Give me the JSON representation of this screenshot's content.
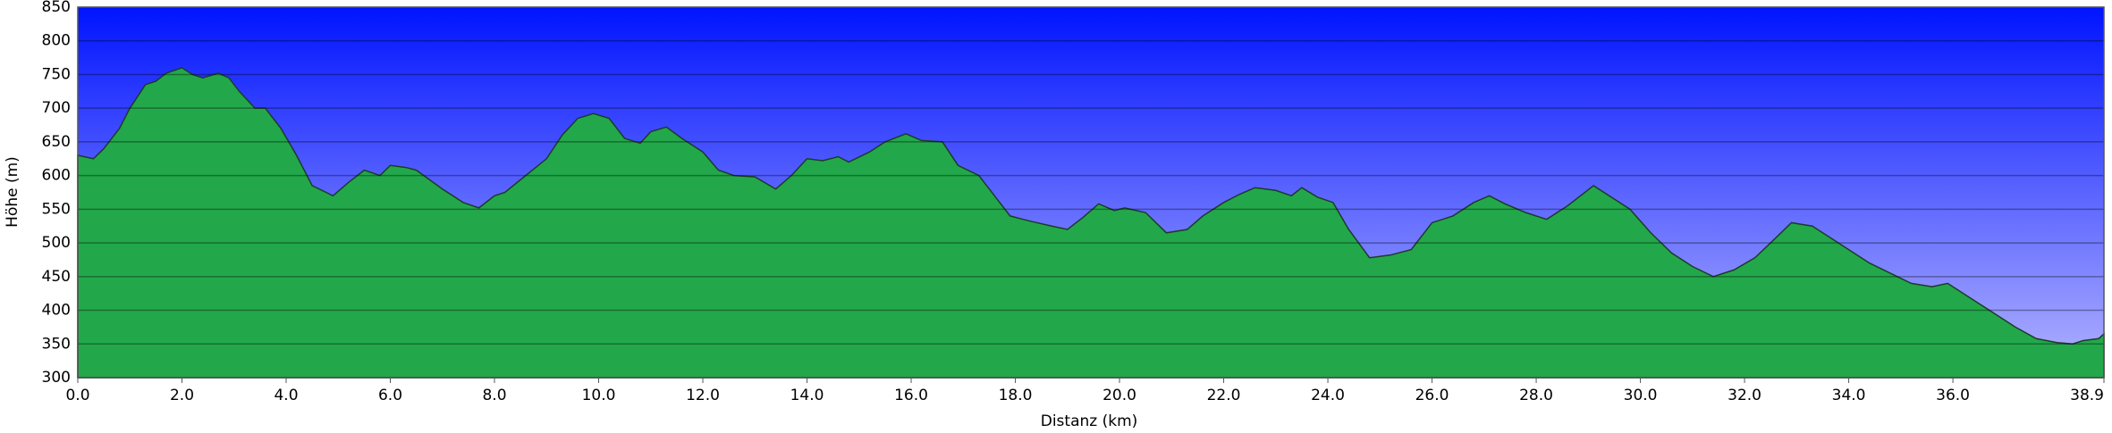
{
  "chart_data": {
    "type": "area",
    "x_label": "Distanz (km)",
    "y_label": "Höhe (m)",
    "color": "#22a84a",
    "line_color": "#1f3a2a",
    "grid": true,
    "xlim": [
      0,
      38.9
    ],
    "ylim": [
      300,
      850
    ],
    "xticks": [
      {
        "value": 0,
        "label": "0.0"
      },
      {
        "value": 2,
        "label": "2.0"
      },
      {
        "value": 4,
        "label": "4.0"
      },
      {
        "value": 6,
        "label": "6.0"
      },
      {
        "value": 8,
        "label": "8.0"
      },
      {
        "value": 10,
        "label": "10.0"
      },
      {
        "value": 12,
        "label": "12.0"
      },
      {
        "value": 14,
        "label": "14.0"
      },
      {
        "value": 16,
        "label": "16.0"
      },
      {
        "value": 18,
        "label": "18.0"
      },
      {
        "value": 20,
        "label": "20.0"
      },
      {
        "value": 22,
        "label": "22.0"
      },
      {
        "value": 24,
        "label": "24.0"
      },
      {
        "value": 26,
        "label": "26.0"
      },
      {
        "value": 28,
        "label": "28.0"
      },
      {
        "value": 30,
        "label": "30.0"
      },
      {
        "value": 32,
        "label": "32.0"
      },
      {
        "value": 34,
        "label": "34.0"
      },
      {
        "value": 36,
        "label": "36.0"
      },
      {
        "value": 38.9,
        "label": "38.9"
      }
    ],
    "yticks": [
      300,
      350,
      400,
      450,
      500,
      550,
      600,
      650,
      700,
      750,
      800,
      850
    ],
    "x": [
      0,
      0.3,
      0.5,
      0.8,
      1.0,
      1.3,
      1.5,
      1.7,
      2.0,
      2.2,
      2.4,
      2.7,
      2.9,
      3.1,
      3.4,
      3.6,
      3.9,
      4.2,
      4.5,
      4.9,
      5.2,
      5.5,
      5.8,
      6.0,
      6.3,
      6.5,
      7.0,
      7.4,
      7.7,
      8.0,
      8.2,
      8.6,
      9.0,
      9.3,
      9.6,
      9.9,
      10.2,
      10.5,
      10.8,
      11.0,
      11.3,
      11.6,
      12.0,
      12.3,
      12.6,
      13.0,
      13.4,
      13.7,
      14.0,
      14.3,
      14.6,
      14.8,
      15.2,
      15.5,
      15.9,
      16.2,
      16.6,
      16.9,
      17.3,
      17.6,
      17.9,
      18.3,
      18.7,
      19.0,
      19.3,
      19.6,
      19.9,
      20.1,
      20.5,
      20.9,
      21.3,
      21.6,
      22.0,
      22.3,
      22.6,
      23.0,
      23.3,
      23.5,
      23.8,
      24.1,
      24.4,
      24.8,
      25.2,
      25.6,
      26.0,
      26.4,
      26.8,
      27.1,
      27.4,
      27.8,
      28.2,
      28.6,
      29.1,
      29.4,
      29.8,
      30.2,
      30.6,
      31.0,
      31.4,
      31.8,
      32.2,
      32.5,
      32.9,
      33.3,
      33.6,
      34.0,
      34.4,
      34.8,
      35.2,
      35.6,
      35.9,
      36.3,
      36.7,
      37.2,
      37.6,
      38.0,
      38.3,
      38.5,
      38.8,
      38.9
    ],
    "values": [
      630,
      625,
      640,
      670,
      700,
      735,
      740,
      752,
      760,
      750,
      745,
      752,
      745,
      725,
      700,
      700,
      670,
      630,
      585,
      570,
      590,
      608,
      600,
      615,
      612,
      608,
      580,
      560,
      552,
      570,
      575,
      600,
      625,
      660,
      685,
      692,
      685,
      655,
      648,
      665,
      672,
      655,
      635,
      608,
      600,
      598,
      580,
      600,
      625,
      622,
      628,
      620,
      635,
      650,
      662,
      652,
      650,
      615,
      600,
      570,
      540,
      532,
      525,
      520,
      538,
      558,
      548,
      552,
      545,
      515,
      520,
      540,
      560,
      572,
      582,
      578,
      570,
      582,
      568,
      560,
      520,
      478,
      482,
      490,
      530,
      540,
      560,
      570,
      558,
      545,
      535,
      555,
      585,
      570,
      550,
      515,
      485,
      465,
      450,
      460,
      478,
      500,
      530,
      525,
      510,
      490,
      470,
      455,
      440,
      435,
      440,
      420,
      400,
      375,
      358,
      352,
      350,
      355,
      358,
      365
    ]
  }
}
